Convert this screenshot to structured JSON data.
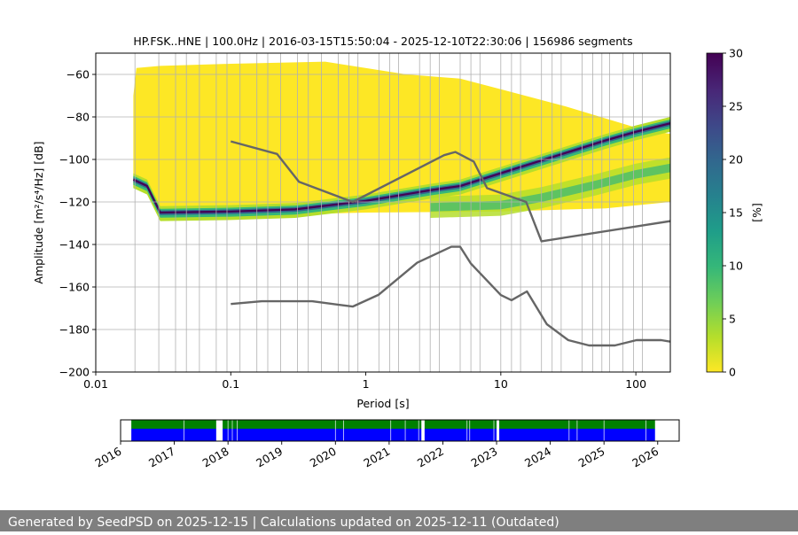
{
  "chart_data": [
    {
      "type": "heatmap",
      "title": "HP.FSK..HNE | 100.0Hz | 2016-03-15T15:50:04 - 2025-12-10T22:30:06 | 156986 segments",
      "xlabel": "Period [s]",
      "ylabel": "Amplitude [m²/s⁴/Hz] [dB]",
      "xscale": "log",
      "xlim": [
        0.01,
        180
      ],
      "ylim": [
        -200,
        -50
      ],
      "x_ticks": [
        {
          "v": 0.01,
          "label": "0.01"
        },
        {
          "v": 0.1,
          "label": "0.1"
        },
        {
          "v": 1,
          "label": "1"
        },
        {
          "v": 10,
          "label": "10"
        },
        {
          "v": 100,
          "label": "100"
        }
      ],
      "y_ticks": [
        {
          "v": -60,
          "label": "−60"
        },
        {
          "v": -80,
          "label": "−80"
        },
        {
          "v": -100,
          "label": "−100"
        },
        {
          "v": -120,
          "label": "−120"
        },
        {
          "v": -140,
          "label": "−140"
        },
        {
          "v": -160,
          "label": "−160"
        },
        {
          "v": -180,
          "label": "−180"
        },
        {
          "v": -200,
          "label": "−200"
        }
      ],
      "period_gridlines": [
        0.0195,
        0.0293,
        0.039,
        0.0469,
        0.0586,
        0.0781,
        0.0938,
        0.117,
        0.156,
        0.188,
        0.234,
        0.312,
        0.375,
        0.469,
        0.625,
        0.75,
        0.875,
        1.25,
        1.5,
        1.75,
        2.5,
        3,
        3.5,
        5,
        6,
        7,
        10,
        12,
        14,
        20,
        24,
        28,
        40,
        48,
        56,
        64,
        80,
        96,
        112
      ],
      "noise_models": [
        {
          "name": "NHNM",
          "color": "#666666",
          "points": [
            [
              0.1,
              -91.5
            ],
            [
              0.22,
              -97.4
            ],
            [
              0.32,
              -110.5
            ],
            [
              0.8,
              -120
            ],
            [
              3.8,
              -98
            ],
            [
              4.6,
              -96.5
            ],
            [
              6.3,
              -101
            ],
            [
              7.9,
              -113.5
            ],
            [
              15.4,
              -120
            ],
            [
              20,
              -138.5
            ],
            [
              180,
              -129
            ]
          ]
        },
        {
          "name": "NLNM",
          "color": "#666666",
          "points": [
            [
              0.1,
              -168
            ],
            [
              0.17,
              -166.7
            ],
            [
              0.4,
              -166.7
            ],
            [
              0.8,
              -169.2
            ],
            [
              1.24,
              -163.7
            ],
            [
              2.4,
              -148.6
            ],
            [
              4.3,
              -141.1
            ],
            [
              5,
              -141.1
            ],
            [
              6,
              -149
            ],
            [
              10,
              -163.8
            ],
            [
              12,
              -166.2
            ],
            [
              15.6,
              -162.1
            ],
            [
              21.9,
              -177.5
            ],
            [
              31.6,
              -185
            ],
            [
              45,
              -187.5
            ],
            [
              70,
              -187.5
            ],
            [
              101,
              -185
            ],
            [
              154,
              -185
            ],
            [
              180,
              -185.7
            ]
          ]
        }
      ],
      "psd_mode_band": [
        [
          0.019,
          -109.5
        ],
        [
          0.024,
          -112.5
        ],
        [
          0.03,
          -125
        ],
        [
          0.1,
          -124.5
        ],
        [
          0.3,
          -123.5
        ],
        [
          1,
          -119.5
        ],
        [
          3,
          -114.5
        ],
        [
          5,
          -112.5
        ],
        [
          10,
          -106.5
        ],
        [
          30,
          -97
        ],
        [
          60,
          -91
        ],
        [
          100,
          -87
        ],
        [
          180,
          -83
        ]
      ],
      "psd_secondary_band": [
        [
          3,
          -122.5
        ],
        [
          10,
          -121.5
        ],
        [
          20,
          -118
        ],
        [
          50,
          -112
        ],
        [
          100,
          -107
        ],
        [
          180,
          -104
        ]
      ],
      "colorbar": {
        "label": "[%]",
        "min": 0,
        "max": 30,
        "ticks": [
          0,
          5,
          10,
          15,
          20,
          25,
          30
        ],
        "colors": [
          "#fde725",
          "#b5de2b",
          "#6ece58",
          "#35b779",
          "#1f9e89",
          "#26828e",
          "#31688e",
          "#3e4989",
          "#482878",
          "#440154"
        ]
      }
    },
    {
      "type": "timeline",
      "start": 2016.0,
      "end": 2026.4,
      "data_start": 2016.2,
      "data_end": 2025.95,
      "top_color": "#008000",
      "bottom_color": "#0000ff",
      "gaps": [
        2017.18,
        2017.83,
        2018.0,
        2018.08,
        2018.17,
        2020.0,
        2020.15,
        2021.03,
        2021.3,
        2021.55,
        2022.45,
        2022.5,
        2022.95,
        2024.35,
        2024.5,
        2025.0,
        2025.78
      ],
      "white_gaps": [
        [
          2017.78,
          2017.9
        ],
        [
          2021.6,
          2021.66
        ],
        [
          2023.0,
          2023.05
        ]
      ],
      "years": [
        "2016",
        "2017",
        "2018",
        "2019",
        "2020",
        "2021",
        "2022",
        "2023",
        "2024",
        "2025",
        "2026"
      ]
    }
  ],
  "footer": {
    "text": "Generated by SeedPSD on 2025-12-15 | Calculations updated on 2025-12-11 (Outdated)"
  }
}
